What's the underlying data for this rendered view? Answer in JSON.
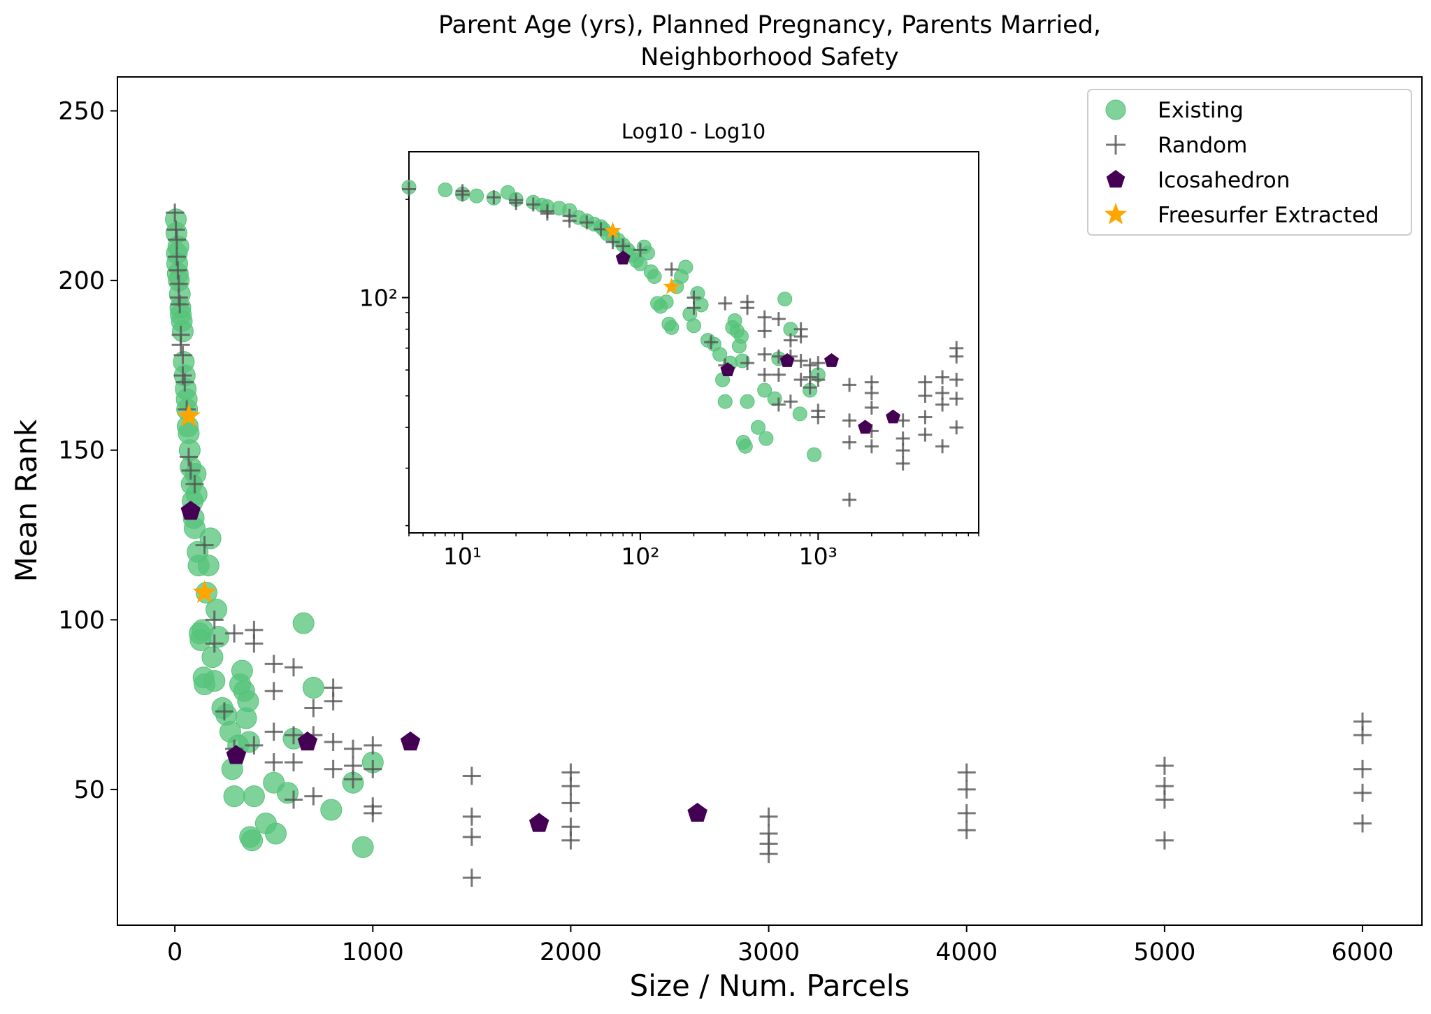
{
  "chart_data": [
    {
      "id": "main",
      "type": "scatter",
      "title": "Parent Age (yrs), Planned Pregnancy, Parents Married,\nNeighborhood Safety",
      "title_lines": [
        "Parent Age (yrs), Planned Pregnancy, Parents Married,",
        "Neighborhood Safety"
      ],
      "xlabel": "Size / Num. Parcels",
      "ylabel": "Mean Rank",
      "xlim": [
        -290,
        6300
      ],
      "ylim": [
        10,
        260
      ],
      "xticks": [
        0,
        1000,
        2000,
        3000,
        4000,
        5000,
        6000
      ],
      "yticks": [
        50,
        100,
        150,
        200,
        250
      ],
      "grid": false,
      "legend_position": "top-right",
      "series": [
        {
          "name": "Existing",
          "marker": "circle",
          "color": "#55c37a",
          "points": [
            [
              5,
              218
            ],
            [
              8,
              214
            ],
            [
              10,
              208
            ],
            [
              12,
              205
            ],
            [
              15,
              202
            ],
            [
              18,
              210
            ],
            [
              20,
              200
            ],
            [
              25,
              196
            ],
            [
              28,
              192
            ],
            [
              30,
              190
            ],
            [
              35,
              188
            ],
            [
              40,
              185
            ],
            [
              45,
              176
            ],
            [
              50,
              172
            ],
            [
              55,
              168
            ],
            [
              60,
              165
            ],
            [
              62,
              162
            ],
            [
              65,
              157
            ],
            [
              70,
              155
            ],
            [
              75,
              150
            ],
            [
              80,
              145
            ],
            [
              85,
              140
            ],
            [
              90,
              135
            ],
            [
              95,
              130
            ],
            [
              100,
              127
            ],
            [
              105,
              143
            ],
            [
              110,
              137
            ],
            [
              115,
              120
            ],
            [
              120,
              116
            ],
            [
              125,
              96
            ],
            [
              130,
              94
            ],
            [
              140,
              97
            ],
            [
              145,
              83
            ],
            [
              150,
              81
            ],
            [
              160,
              108
            ],
            [
              170,
              116
            ],
            [
              180,
              124
            ],
            [
              190,
              89
            ],
            [
              200,
              82
            ],
            [
              210,
              103
            ],
            [
              220,
              95
            ],
            [
              240,
              74
            ],
            [
              260,
              72
            ],
            [
              280,
              67
            ],
            [
              290,
              56
            ],
            [
              300,
              48
            ],
            [
              320,
              63
            ],
            [
              330,
              81
            ],
            [
              340,
              85
            ],
            [
              350,
              79
            ],
            [
              360,
              71
            ],
            [
              370,
              76
            ],
            [
              375,
              64
            ],
            [
              380,
              36
            ],
            [
              390,
              35
            ],
            [
              400,
              48
            ],
            [
              460,
              40
            ],
            [
              500,
              52
            ],
            [
              510,
              37
            ],
            [
              570,
              49
            ],
            [
              600,
              65
            ],
            [
              650,
              99
            ],
            [
              700,
              80
            ],
            [
              790,
              44
            ],
            [
              900,
              52
            ],
            [
              950,
              33
            ],
            [
              1000,
              58
            ]
          ]
        },
        {
          "name": "Random",
          "marker": "plus",
          "color": "#555555",
          "points": [
            [
              0,
              220
            ],
            [
              5,
              215
            ],
            [
              10,
              212
            ],
            [
              10,
              207
            ],
            [
              15,
              203
            ],
            [
              20,
              199
            ],
            [
              20,
              195
            ],
            [
              25,
              193
            ],
            [
              30,
              184
            ],
            [
              30,
              181
            ],
            [
              40,
              178
            ],
            [
              40,
              172
            ],
            [
              50,
              170
            ],
            [
              60,
              162
            ],
            [
              70,
              148
            ],
            [
              80,
              144
            ],
            [
              100,
              140
            ],
            [
              150,
              122
            ],
            [
              200,
              100
            ],
            [
              200,
              93
            ],
            [
              250,
              73
            ],
            [
              300,
              96
            ],
            [
              300,
              62
            ],
            [
              400,
              97
            ],
            [
              400,
              93
            ],
            [
              400,
              63
            ],
            [
              500,
              87
            ],
            [
              500,
              79
            ],
            [
              500,
              67
            ],
            [
              500,
              58
            ],
            [
              600,
              86
            ],
            [
              600,
              66
            ],
            [
              600,
              58
            ],
            [
              600,
              47
            ],
            [
              700,
              74
            ],
            [
              700,
              66
            ],
            [
              700,
              48
            ],
            [
              800,
              80
            ],
            [
              800,
              76
            ],
            [
              800,
              64
            ],
            [
              800,
              56
            ],
            [
              900,
              62
            ],
            [
              900,
              57
            ],
            [
              900,
              53
            ],
            [
              1000,
              63
            ],
            [
              1000,
              56
            ],
            [
              1000,
              45
            ],
            [
              1000,
              43
            ],
            [
              1500,
              54
            ],
            [
              1500,
              42
            ],
            [
              1500,
              36
            ],
            [
              1500,
              24
            ],
            [
              2000,
              55
            ],
            [
              2000,
              51
            ],
            [
              2000,
              46
            ],
            [
              2000,
              39
            ],
            [
              2000,
              35
            ],
            [
              3000,
              42
            ],
            [
              3000,
              37
            ],
            [
              3000,
              34
            ],
            [
              3000,
              31
            ],
            [
              4000,
              55
            ],
            [
              4000,
              50
            ],
            [
              4000,
              43
            ],
            [
              4000,
              38
            ],
            [
              5000,
              57
            ],
            [
              5000,
              51
            ],
            [
              5000,
              47
            ],
            [
              5000,
              35
            ],
            [
              6000,
              70
            ],
            [
              6000,
              66
            ],
            [
              6000,
              56
            ],
            [
              6000,
              49
            ],
            [
              6000,
              40
            ]
          ]
        },
        {
          "name": "Icosahedron",
          "marker": "pentagon",
          "color": "#440154",
          "points": [
            [
              80,
              132
            ],
            [
              310,
              60
            ],
            [
              670,
              64
            ],
            [
              1190,
              64
            ],
            [
              1840,
              40
            ],
            [
              2640,
              43
            ]
          ]
        },
        {
          "name": "Freesurfer Extracted",
          "marker": "star",
          "color": "#ffa500",
          "points": [
            [
              70,
              160
            ],
            [
              150,
              108
            ]
          ]
        }
      ]
    },
    {
      "id": "inset",
      "type": "scatter",
      "title": "Log10 - Log10",
      "xscale": "log",
      "yscale": "log",
      "xlim": [
        5,
        8000
      ],
      "ylim": [
        19,
        280
      ],
      "xticks_labels": [
        "10¹",
        "10²",
        "10³"
      ],
      "yticks_labels": [
        "10²"
      ],
      "xticks": [
        10,
        100,
        1000
      ],
      "yticks": [
        100
      ],
      "grid": false,
      "series_ref": "same as main"
    }
  ]
}
